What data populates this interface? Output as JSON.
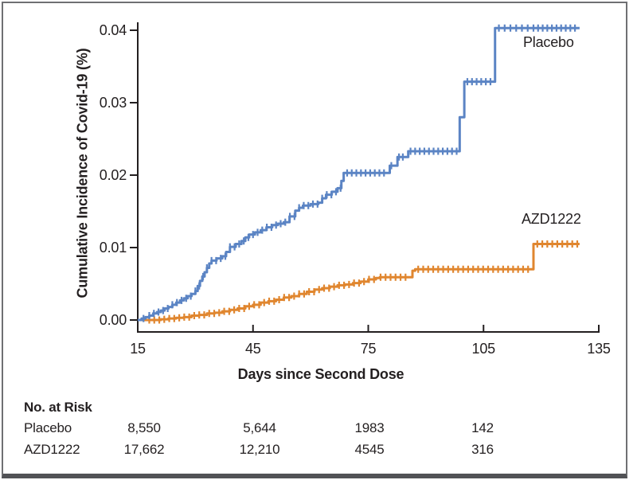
{
  "chart_data": {
    "type": "line",
    "subtype": "step-function-cumulative-incidence",
    "title": "",
    "xlabel": "Days since Second Dose",
    "ylabel": "Cumulative Incidence of Covid-19 (%)",
    "xlim": [
      15,
      135
    ],
    "ylim": [
      0,
      0.04
    ],
    "x_ticks": [
      "15",
      "45",
      "75",
      "105",
      "135"
    ],
    "y_ticks": [
      "0.00",
      "0.01",
      "0.02",
      "0.03",
      "0.04"
    ],
    "grid": false,
    "legend_position": "inline-labels",
    "axis_color": "#231f20",
    "series": [
      {
        "name": "AZD1222",
        "color": "#e0862f",
        "end_day": 130,
        "points": [
          [
            15,
            0
          ],
          [
            21,
            0.0001
          ],
          [
            23,
            0.0002
          ],
          [
            25,
            0.0003
          ],
          [
            27,
            0.0004
          ],
          [
            29,
            0.0006
          ],
          [
            31,
            0.0007
          ],
          [
            33,
            0.0009
          ],
          [
            35,
            0.001
          ],
          [
            37,
            0.0012
          ],
          [
            39,
            0.0014
          ],
          [
            41,
            0.0016
          ],
          [
            43,
            0.0019
          ],
          [
            45,
            0.0021
          ],
          [
            47,
            0.0024
          ],
          [
            49,
            0.0026
          ],
          [
            51,
            0.0028
          ],
          [
            53,
            0.0031
          ],
          [
            55,
            0.0033
          ],
          [
            57,
            0.0036
          ],
          [
            59,
            0.0039
          ],
          [
            61,
            0.0042
          ],
          [
            63,
            0.0044
          ],
          [
            65,
            0.0046
          ],
          [
            67,
            0.0048
          ],
          [
            69,
            0.0049
          ],
          [
            71,
            0.0051
          ],
          [
            73,
            0.0053
          ],
          [
            75,
            0.0056
          ],
          [
            77,
            0.0058
          ],
          [
            78,
            0.0059
          ],
          [
            86.5,
            0.0068
          ],
          [
            87.2,
            0.007
          ],
          [
            118,
            0.0105
          ]
        ],
        "censor_days": [
          18,
          19.3,
          20.6,
          21.9,
          23.2,
          24.5,
          25.8,
          27.1,
          28.4,
          29.7,
          31,
          32.3,
          33.6,
          34.9,
          36.2,
          37.5,
          38.8,
          40.1,
          41.4,
          42.7,
          44,
          45.3,
          46.6,
          47.9,
          49.2,
          50.5,
          51.8,
          53.1,
          54.4,
          55.7,
          57,
          58.3,
          59.6,
          60.9,
          62.2,
          63.5,
          64.8,
          66.1,
          67.4,
          68.7,
          70,
          71.3,
          72.6,
          73.9,
          75.2,
          76.5,
          78.2,
          79.5,
          80.8,
          82.1,
          83.4,
          84.7,
          88,
          89.3,
          90.6,
          91.9,
          93.2,
          94.5,
          95.8,
          97.1,
          98.4,
          99.7,
          101,
          102.3,
          103.6,
          104.9,
          106.2,
          107.5,
          108.8,
          110.1,
          111.4,
          112.7,
          114,
          115.3,
          116.6,
          119,
          120.3,
          121.6,
          122.9,
          124.2,
          125.5,
          126.8,
          128.1,
          129.4
        ]
      },
      {
        "name": "Placebo",
        "color": "#5b84c4",
        "end_day": 130,
        "points": [
          [
            15,
            0
          ],
          [
            16,
            0.0002
          ],
          [
            17,
            0.0004
          ],
          [
            18,
            0.0006
          ],
          [
            19,
            0.0009
          ],
          [
            20,
            0.0011
          ],
          [
            21,
            0.0013
          ],
          [
            22,
            0.0016
          ],
          [
            23,
            0.0018
          ],
          [
            24,
            0.0021
          ],
          [
            25,
            0.0024
          ],
          [
            26,
            0.0027
          ],
          [
            27,
            0.003
          ],
          [
            28,
            0.0033
          ],
          [
            29,
            0.0036
          ],
          [
            30,
            0.004
          ],
          [
            30.6,
            0.0047
          ],
          [
            31.2,
            0.0054
          ],
          [
            31.8,
            0.006
          ],
          [
            32.4,
            0.0066
          ],
          [
            33,
            0.0072
          ],
          [
            33.6,
            0.0078
          ],
          [
            34.2,
            0.0082
          ],
          [
            35.5,
            0.0085
          ],
          [
            37,
            0.0088
          ],
          [
            38,
            0.0094
          ],
          [
            39,
            0.0101
          ],
          [
            40.5,
            0.0105
          ],
          [
            42,
            0.0109
          ],
          [
            43,
            0.0114
          ],
          [
            44,
            0.0118
          ],
          [
            45.5,
            0.0121
          ],
          [
            47,
            0.0124
          ],
          [
            48.5,
            0.0128
          ],
          [
            50,
            0.0131
          ],
          [
            51.5,
            0.0133
          ],
          [
            53,
            0.0135
          ],
          [
            54.5,
            0.0143
          ],
          [
            56,
            0.0151
          ],
          [
            57,
            0.0155
          ],
          [
            58,
            0.0158
          ],
          [
            60,
            0.016
          ],
          [
            62,
            0.0162
          ],
          [
            63,
            0.0168
          ],
          [
            64,
            0.0173
          ],
          [
            65.5,
            0.0177
          ],
          [
            67,
            0.0182
          ],
          [
            68,
            0.0192
          ],
          [
            68.6,
            0.0203
          ],
          [
            80.6,
            0.0213
          ],
          [
            82.6,
            0.0225
          ],
          [
            85.4,
            0.0233
          ],
          [
            98.8,
            0.028
          ],
          [
            100,
            0.0329
          ],
          [
            108,
            0.0403
          ]
        ],
        "censor_days": [
          16.5,
          18,
          19.2,
          20.4,
          21.6,
          22.8,
          24,
          25.2,
          26.4,
          27.6,
          28.8,
          30,
          31,
          32,
          33,
          34.2,
          35.4,
          36.6,
          37.8,
          39,
          40.2,
          41.4,
          42.6,
          43.8,
          45,
          46.2,
          47.4,
          48.6,
          49.8,
          51,
          52.2,
          53.4,
          54.6,
          55.8,
          57,
          58.2,
          59.4,
          60.6,
          61.8,
          63,
          64.2,
          65.4,
          66.6,
          67.8,
          69.5,
          70.7,
          71.9,
          73.1,
          74.3,
          75.5,
          76.7,
          77.9,
          79.1,
          81,
          83,
          84,
          86,
          87.2,
          88.4,
          89.6,
          90.8,
          92,
          93.2,
          94.4,
          95.6,
          96.8,
          98,
          100.8,
          102,
          103.2,
          104.4,
          105.6,
          106.8,
          109,
          110.5,
          112,
          113.5,
          115,
          116.5,
          118,
          119.2,
          120.4,
          121.6,
          122.8,
          124,
          125.2,
          126.4,
          127.6,
          128.8
        ]
      }
    ]
  },
  "risk_table": {
    "title": "No. at Risk",
    "rows": [
      {
        "label": "Placebo",
        "values": [
          "8,550",
          "5,644",
          "1983",
          "142"
        ]
      },
      {
        "label": "AZD1222",
        "values": [
          "17,662",
          "12,210",
          "4545",
          "316"
        ]
      }
    ]
  }
}
